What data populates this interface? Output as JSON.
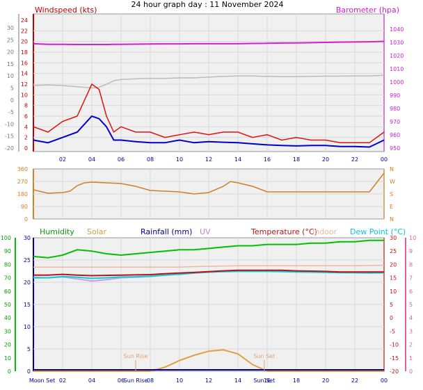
{
  "title": "24 hour graph day : 11 November 2024",
  "colors": {
    "wind": "#e01010",
    "gust_avg": "#0000cc",
    "barometer": "#d020d0",
    "temperature": "#c01010",
    "humidity": "#00c000",
    "solar": "#e0a040",
    "rainfall": "#000099",
    "uv": "#d080d0",
    "indoor": "#f0b8a0",
    "dewpoint": "#00d0e0",
    "direction": "#d08020",
    "grey_series": "#bbbbbb",
    "windchill": "#c8a0e8",
    "panel_bg": "#f0f0f0",
    "grid": "#d8d8d8"
  },
  "chart_data": [
    {
      "type": "line",
      "panel": "wind-barometer",
      "y_left_label": "Windspeed (kts)",
      "y_left_ticks": [
        "24",
        "22",
        "20",
        "18",
        "16",
        "14",
        "12",
        "10",
        "8",
        "6",
        "4",
        "2",
        "0"
      ],
      "y_outer_ticks": [
        "30",
        "25",
        "20",
        "15",
        "10",
        "5",
        "0",
        "-5",
        "-10",
        "-15",
        "-20"
      ],
      "y_right_label": "Barometer (hpa)",
      "y_right_ticks": [
        "1040",
        "1030",
        "1020",
        "1010",
        "1000",
        "990",
        "980",
        "970",
        "960",
        "950"
      ],
      "x_ticks": [
        "02",
        "04",
        "06",
        "08",
        "10",
        "12",
        "14",
        "16",
        "18",
        "20",
        "22",
        "00"
      ],
      "hours": [
        0,
        1,
        2,
        3,
        4,
        4.5,
        5,
        5.5,
        6,
        7,
        8,
        9,
        10,
        11,
        12,
        13,
        14,
        15,
        16,
        17,
        18,
        19,
        20,
        21,
        22,
        23,
        24
      ],
      "series": [
        {
          "key": "wind_gust",
          "values": [
            4,
            3,
            5,
            6,
            12,
            11,
            6,
            3,
            4,
            3,
            3,
            2,
            2.5,
            3,
            2.5,
            3,
            3,
            2,
            2.5,
            1.5,
            2,
            1.5,
            1.5,
            1,
            1,
            1,
            3
          ]
        },
        {
          "key": "wind_avg",
          "values": [
            1.5,
            1,
            2,
            3,
            6,
            5.5,
            4,
            1.5,
            1.5,
            1.2,
            1,
            1,
            1.5,
            1,
            1.2,
            1.1,
            1,
            0.8,
            0.6,
            0.5,
            0.4,
            0.5,
            0.5,
            0.3,
            0.3,
            0.2,
            1.5
          ]
        },
        {
          "key": "barometer",
          "values": [
            1029,
            1028.5,
            1028.5,
            1028.4,
            1028.4,
            1028.4,
            1028.4,
            1028.5,
            1028.5,
            1028.7,
            1028.8,
            1028.9,
            1028.9,
            1029,
            1029,
            1029,
            1029,
            1029.2,
            1029.3,
            1029.5,
            1029.6,
            1029.8,
            1030,
            1030.2,
            1030.3,
            1030.5,
            1030.8
          ]
        },
        {
          "key": "grey",
          "values": [
            6,
            6.2,
            6,
            5.5,
            5,
            5.3,
            6.5,
            8,
            8.5,
            8.8,
            9,
            9,
            9.2,
            9.2,
            9.5,
            9.8,
            10,
            10,
            9.8,
            9.7,
            9.7,
            9.8,
            9.9,
            9.9,
            10,
            10,
            10.3
          ]
        }
      ]
    },
    {
      "type": "line",
      "panel": "wind-direction",
      "y_left_ticks": [
        "360",
        "270",
        "180",
        "90",
        "0"
      ],
      "y_right_ticks": [
        "N",
        "W",
        "S",
        "E",
        "N"
      ],
      "hours": [
        0,
        1,
        2,
        2.5,
        3,
        3.5,
        4,
        5,
        6,
        7,
        8,
        9,
        10,
        11,
        12,
        13,
        13.5,
        14,
        15,
        16,
        17,
        18,
        19,
        20,
        21,
        22,
        23,
        24
      ],
      "series": [
        {
          "key": "direction",
          "values": [
            210,
            185,
            190,
            200,
            240,
            260,
            265,
            260,
            255,
            235,
            205,
            200,
            195,
            180,
            190,
            235,
            270,
            260,
            235,
            195,
            195,
            195,
            195,
            195,
            195,
            195,
            195,
            330
          ]
        }
      ]
    },
    {
      "type": "line",
      "panel": "temperature-humidity",
      "legend": [
        "Humidity",
        "Solar",
        "Rainfall (mm)",
        "UV",
        "Temperature (°C)",
        "Indoor",
        "Dew Point (°C)"
      ],
      "y_humidity_ticks": [
        "100",
        "90",
        "80",
        "70",
        "60",
        "50",
        "40",
        "30",
        "20",
        "10",
        "0"
      ],
      "y_left_ticks": [
        "30",
        "25",
        "20",
        "15",
        "10",
        "5",
        "0"
      ],
      "y_right_ticks": [
        "30",
        "25",
        "20",
        "15",
        "10",
        "5",
        "0",
        "-5",
        "-10",
        "-15",
        "-20"
      ],
      "y_uv_ticks": [
        "10",
        "9",
        "8",
        "7",
        "6",
        "5",
        "4",
        "3",
        "2",
        "1",
        "0"
      ],
      "x_ticks": [
        "02",
        "04",
        "06",
        "08",
        "10",
        "12",
        "14",
        "16",
        "18",
        "20",
        "22",
        "00"
      ],
      "annotations": [
        "Moon Set",
        "Sun Rise",
        "Sun Set",
        "Sun Rise",
        "Sun Set"
      ],
      "hours": [
        0,
        1,
        2,
        3,
        4,
        5,
        6,
        7,
        8,
        9,
        10,
        11,
        12,
        13,
        14,
        15,
        16,
        17,
        18,
        19,
        20,
        21,
        22,
        23,
        24
      ],
      "series": [
        {
          "key": "humidity",
          "values": [
            86,
            85,
            87,
            91,
            90,
            88,
            87,
            88,
            89,
            90,
            91,
            91,
            92,
            93,
            94,
            94,
            95,
            95,
            95,
            96,
            96,
            97,
            97,
            98,
            98
          ]
        },
        {
          "key": "indoor",
          "values": [
            19,
            19,
            19,
            19,
            19,
            19,
            19,
            19,
            19,
            19,
            19,
            19.2,
            19.3,
            19.4,
            19.5,
            19.5,
            19.5,
            19.5,
            19.5,
            19.5,
            19.5,
            19.5,
            19.5,
            19.6,
            19.7
          ]
        },
        {
          "key": "temperature",
          "values": [
            16,
            16,
            16.3,
            16,
            15.8,
            15.9,
            16,
            16.1,
            16.2,
            16.5,
            16.8,
            17,
            17.3,
            17.6,
            17.8,
            17.8,
            17.8,
            17.8,
            17.6,
            17.5,
            17.4,
            17.2,
            17.2,
            17.2,
            17.2
          ]
        },
        {
          "key": "dewpoint",
          "values": [
            15,
            15,
            15.5,
            15.2,
            14.8,
            15,
            15.3,
            15.4,
            15.6,
            16,
            16.3,
            16.8,
            17.1,
            17.3,
            17.4,
            17.4,
            17.4,
            17.3,
            17.2,
            17.1,
            17,
            16.9,
            16.9,
            16.8,
            16.9
          ]
        },
        {
          "key": "windchill",
          "values": [
            15.2,
            15,
            15.3,
            14.6,
            13.8,
            14.3,
            15,
            15.2,
            15.5,
            16,
            16.5,
            17,
            17.3,
            17.5,
            17.6,
            17.6,
            17.6,
            17.5,
            17.3,
            17.2,
            17.1,
            17,
            16.9,
            16.9,
            16.9
          ]
        },
        {
          "key": "solar",
          "values": [
            0,
            0,
            0,
            0,
            0,
            0,
            0,
            0,
            0,
            0.3,
            0.8,
            1.2,
            1.5,
            1.6,
            1.3,
            0.5,
            0,
            0,
            0,
            0,
            0,
            0,
            0,
            0,
            0
          ]
        },
        {
          "key": "rainfall",
          "values": [
            0,
            0,
            0,
            0,
            0,
            0,
            0,
            0,
            0,
            0,
            0,
            0,
            0,
            0,
            0,
            0,
            0,
            0,
            0,
            0,
            0,
            0,
            0,
            0,
            0
          ]
        }
      ]
    }
  ]
}
